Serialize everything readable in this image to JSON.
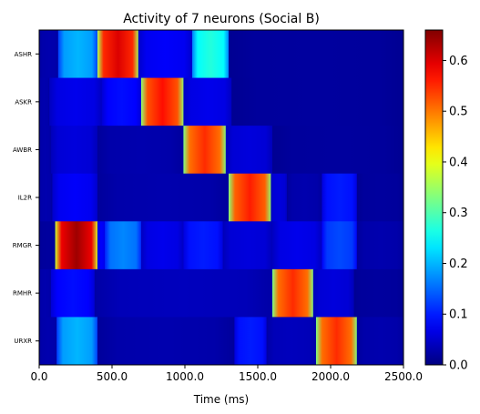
{
  "chart_data": {
    "type": "heatmap",
    "title": "Activity of 7 neurons (Social B)",
    "xlabel": "Time (ms)",
    "ylabel": "",
    "xlim": [
      0,
      2500
    ],
    "x_ticks": [
      0,
      500,
      1000,
      1500,
      2000,
      2500
    ],
    "x_tick_labels": [
      "0.0",
      "500.0",
      "1000.0",
      "1500.0",
      "2000.0",
      "2500.0"
    ],
    "rows": [
      "ASHR",
      "ASKR",
      "AWBR",
      "IL2R",
      "RMGR",
      "RMHR",
      "URXR"
    ],
    "colorbar": {
      "colormap": "jet",
      "range": [
        0,
        0.66
      ],
      "ticks": [
        0.0,
        0.1,
        0.2,
        0.3,
        0.4,
        0.5,
        0.6
      ],
      "tick_labels": [
        "0.0",
        "0.1",
        "0.2",
        "0.3",
        "0.4",
        "0.5",
        "0.6"
      ]
    },
    "series": [
      {
        "name": "ASHR",
        "segments": [
          {
            "start": 0,
            "end": 130,
            "level": 0.03
          },
          {
            "start": 130,
            "end": 400,
            "level": 0.2
          },
          {
            "start": 400,
            "end": 680,
            "level": 0.6
          },
          {
            "start": 680,
            "end": 1050,
            "level": 0.08
          },
          {
            "start": 1050,
            "end": 1300,
            "level": 0.27
          },
          {
            "start": 1300,
            "end": 2500,
            "level": 0.02
          }
        ]
      },
      {
        "name": "ASKR",
        "segments": [
          {
            "start": 0,
            "end": 70,
            "level": 0.03
          },
          {
            "start": 70,
            "end": 430,
            "level": 0.07
          },
          {
            "start": 430,
            "end": 700,
            "level": 0.09
          },
          {
            "start": 700,
            "end": 990,
            "level": 0.57
          },
          {
            "start": 990,
            "end": 1320,
            "level": 0.07
          },
          {
            "start": 1320,
            "end": 2500,
            "level": 0.02
          }
        ]
      },
      {
        "name": "AWBR",
        "segments": [
          {
            "start": 0,
            "end": 80,
            "level": 0.03
          },
          {
            "start": 80,
            "end": 400,
            "level": 0.06
          },
          {
            "start": 400,
            "end": 990,
            "level": 0.03
          },
          {
            "start": 990,
            "end": 1280,
            "level": 0.55
          },
          {
            "start": 1280,
            "end": 1600,
            "level": 0.06
          },
          {
            "start": 1600,
            "end": 2500,
            "level": 0.02
          }
        ]
      },
      {
        "name": "IL2R",
        "segments": [
          {
            "start": 0,
            "end": 90,
            "level": 0.03
          },
          {
            "start": 90,
            "end": 400,
            "level": 0.08
          },
          {
            "start": 400,
            "end": 1300,
            "level": 0.03
          },
          {
            "start": 1300,
            "end": 1590,
            "level": 0.56
          },
          {
            "start": 1590,
            "end": 1700,
            "level": 0.06
          },
          {
            "start": 1700,
            "end": 1940,
            "level": 0.03
          },
          {
            "start": 1940,
            "end": 2180,
            "level": 0.1
          },
          {
            "start": 2180,
            "end": 2500,
            "level": 0.02
          }
        ]
      },
      {
        "name": "RMGR",
        "segments": [
          {
            "start": 0,
            "end": 110,
            "level": 0.02
          },
          {
            "start": 110,
            "end": 400,
            "level": 0.64
          },
          {
            "start": 400,
            "end": 450,
            "level": 0.08
          },
          {
            "start": 450,
            "end": 700,
            "level": 0.17
          },
          {
            "start": 700,
            "end": 990,
            "level": 0.07
          },
          {
            "start": 990,
            "end": 1260,
            "level": 0.1
          },
          {
            "start": 1260,
            "end": 1600,
            "level": 0.06
          },
          {
            "start": 1600,
            "end": 1940,
            "level": 0.07
          },
          {
            "start": 1940,
            "end": 2180,
            "level": 0.13
          },
          {
            "start": 2180,
            "end": 2500,
            "level": 0.03
          }
        ]
      },
      {
        "name": "RMHR",
        "segments": [
          {
            "start": 0,
            "end": 80,
            "level": 0.03
          },
          {
            "start": 80,
            "end": 380,
            "level": 0.09
          },
          {
            "start": 380,
            "end": 1600,
            "level": 0.04
          },
          {
            "start": 1600,
            "end": 1880,
            "level": 0.55
          },
          {
            "start": 1880,
            "end": 2160,
            "level": 0.06
          },
          {
            "start": 2160,
            "end": 2500,
            "level": 0.02
          }
        ]
      },
      {
        "name": "URXR",
        "segments": [
          {
            "start": 0,
            "end": 120,
            "level": 0.03
          },
          {
            "start": 120,
            "end": 400,
            "level": 0.2
          },
          {
            "start": 400,
            "end": 1340,
            "level": 0.03
          },
          {
            "start": 1340,
            "end": 1560,
            "level": 0.1
          },
          {
            "start": 1560,
            "end": 1900,
            "level": 0.04
          },
          {
            "start": 1900,
            "end": 2180,
            "level": 0.55
          },
          {
            "start": 2180,
            "end": 2500,
            "level": 0.03
          }
        ]
      }
    ]
  }
}
